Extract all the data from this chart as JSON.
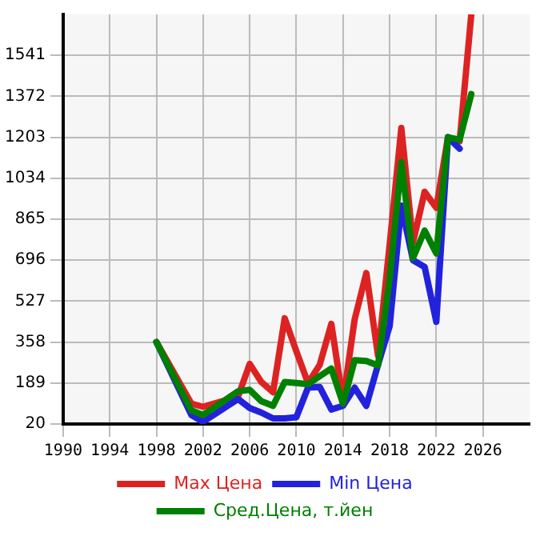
{
  "chart_data": {
    "type": "line",
    "x": [
      1998,
      2001,
      2002,
      2005,
      2006,
      2007,
      2008,
      2009,
      2010,
      2011,
      2012,
      2013,
      2014,
      2015,
      2016,
      2017,
      2018,
      2019,
      2020,
      2021,
      2022,
      2023,
      2024,
      2025
    ],
    "series": [
      {
        "name": "Max Цена",
        "color": "#dd2222",
        "values": [
          358,
          104,
          91,
          133,
          268,
          193,
          151,
          456,
          320,
          189,
          264,
          433,
          114,
          452,
          643,
          302,
          760,
          1241,
          769,
          978,
          912,
          1203,
          1186,
          1710
        ]
      },
      {
        "name": "Min Цена",
        "color": "#2222dd",
        "values": [
          358,
          57,
          29,
          123,
          86,
          67,
          43,
          43,
          48,
          170,
          173,
          80,
          95,
          170,
          95,
          264,
          424,
          921,
          696,
          668,
          442,
          1203,
          1156,
          null
        ]
      },
      {
        "name": "Сред.Цена, т.йен",
        "color": "#008000",
        "values": [
          358,
          76,
          57,
          155,
          161,
          114,
          95,
          193,
          189,
          184,
          217,
          249,
          104,
          283,
          280,
          262,
          620,
          1100,
          705,
          818,
          724,
          1203,
          1193,
          1381
        ]
      }
    ],
    "xlim": [
      1990,
      2030
    ],
    "xticks": [
      1990,
      1994,
      1998,
      2002,
      2006,
      2010,
      2014,
      2018,
      2022,
      2026
    ],
    "ylim": [
      20,
      1710
    ],
    "yticks": [
      20,
      189,
      358,
      527,
      696,
      865,
      1034,
      1203,
      1372,
      1541
    ],
    "grid": true,
    "legend": "bottom",
    "marker": "none",
    "line_style": "solid"
  }
}
